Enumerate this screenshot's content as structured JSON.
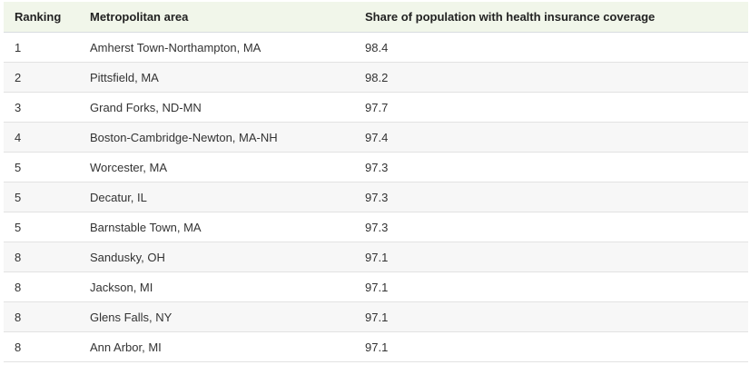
{
  "table": {
    "headers": {
      "ranking": "Ranking",
      "metro": "Metropolitan area",
      "share": "Share of population with health insurance coverage"
    },
    "rows": [
      {
        "ranking": "1",
        "metro": "Amherst Town-Northampton, MA",
        "share": "98.4"
      },
      {
        "ranking": "2",
        "metro": "Pittsfield, MA",
        "share": "98.2"
      },
      {
        "ranking": "3",
        "metro": "Grand Forks, ND-MN",
        "share": "97.7"
      },
      {
        "ranking": "4",
        "metro": "Boston-Cambridge-Newton, MA-NH",
        "share": "97.4"
      },
      {
        "ranking": "5",
        "metro": "Worcester, MA",
        "share": "97.3"
      },
      {
        "ranking": "5",
        "metro": "Decatur, IL",
        "share": "97.3"
      },
      {
        "ranking": "5",
        "metro": "Barnstable Town, MA",
        "share": "97.3"
      },
      {
        "ranking": "8",
        "metro": "Sandusky, OH",
        "share": "97.1"
      },
      {
        "ranking": "8",
        "metro": "Jackson, MI",
        "share": "97.1"
      },
      {
        "ranking": "8",
        "metro": "Glens Falls, NY",
        "share": "97.1"
      },
      {
        "ranking": "8",
        "metro": "Ann Arbor, MI",
        "share": "97.1"
      }
    ]
  }
}
